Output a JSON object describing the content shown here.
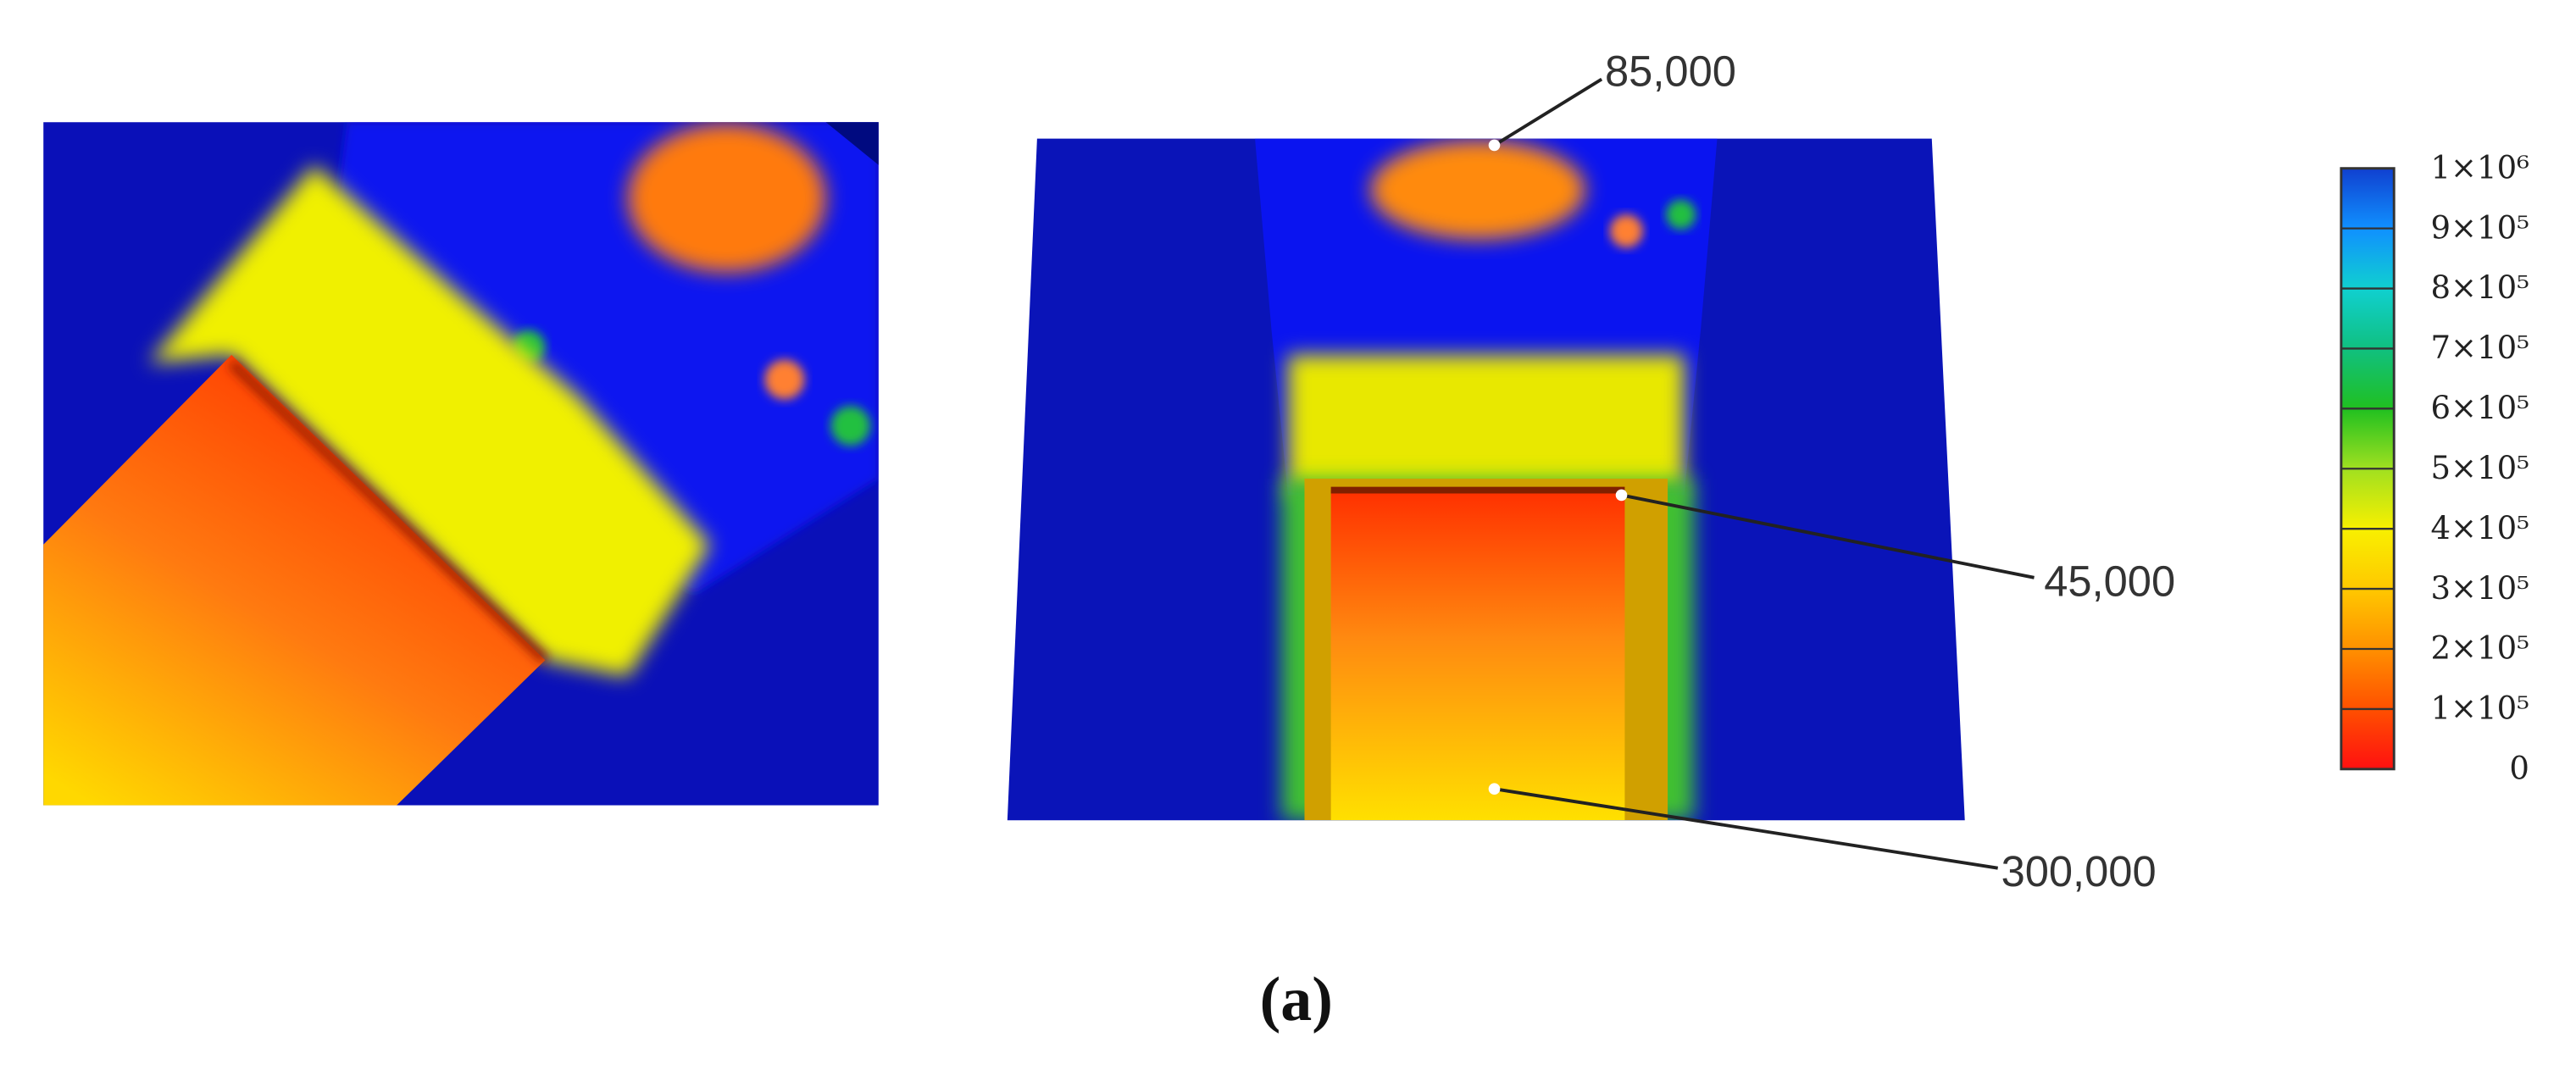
{
  "annotations": [
    "85,000",
    "45,000",
    "300,000"
  ],
  "colorbar": {
    "labels": [
      "1×10⁶",
      "9×10⁵",
      "8×10⁵",
      "7×10⁵",
      "6×10⁵",
      "5×10⁵",
      "4×10⁵",
      "3×10⁵",
      "2×10⁵",
      "1×10⁵",
      "0"
    ]
  },
  "caption": "(a)"
}
